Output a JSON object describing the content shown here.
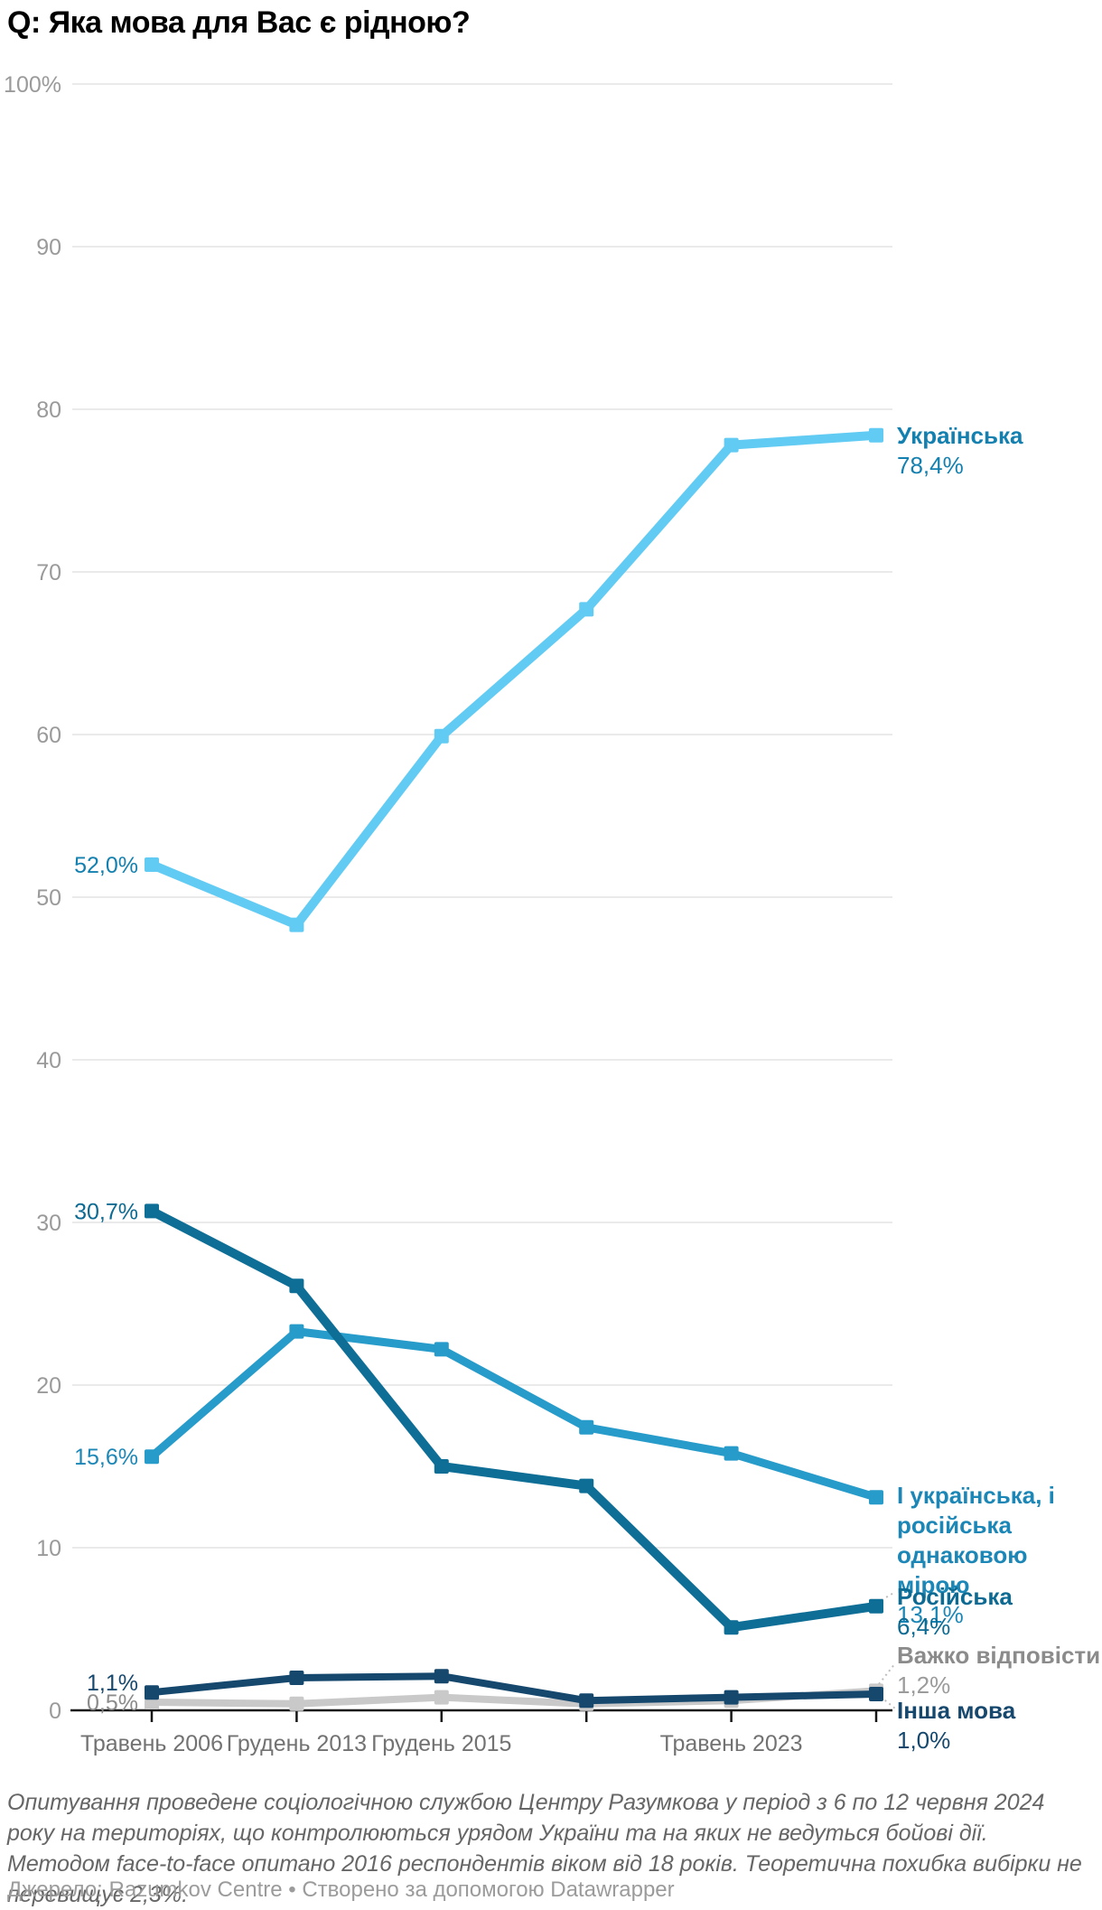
{
  "header": {
    "title": "Q: Яка мова для Вас є рідною?"
  },
  "chart_data": {
    "type": "line",
    "title": "Q: Яка мова для Вас є рідною?",
    "x_tick_labels": [
      "Травень 2006",
      "Грудень 2013",
      "Грудень 2015",
      "",
      "Травень 2023",
      ""
    ],
    "y_ticks": [
      0,
      10,
      20,
      30,
      40,
      50,
      60,
      70,
      80,
      90,
      100
    ],
    "y_axis_top_label": "100%",
    "ylim": [
      0,
      100
    ],
    "grid": true,
    "legend_position": "right-of-line-ends",
    "series": [
      {
        "name": "Українська",
        "values": [
          52.0,
          48.3,
          59.9,
          67.7,
          77.8,
          78.4
        ],
        "start_label": "52,0%",
        "end_value_label": "78,4%",
        "line_color": "#62CBF3",
        "label_color": "#1480AF",
        "value_color": "#1480AF"
      },
      {
        "name": "І українська, і російська однаковою мірою",
        "values": [
          15.6,
          23.3,
          22.2,
          17.4,
          15.8,
          13.1
        ],
        "start_label": "15,6%",
        "end_value_label": "13,1%",
        "line_color": "#279BC9",
        "label_color": "#1C87B6",
        "value_color": "#1C87B6"
      },
      {
        "name": "Російська",
        "values": [
          30.7,
          26.1,
          15.0,
          13.8,
          5.1,
          6.4
        ],
        "start_label": "30,7%",
        "end_value_label": "6,4%",
        "line_color": "#0E6E96",
        "label_color": "#0D6A92",
        "value_color": "#0D6A92"
      },
      {
        "name": "Важко відповісти",
        "values": [
          0.5,
          0.4,
          0.8,
          0.4,
          0.6,
          1.2
        ],
        "start_label": "0,5%",
        "end_value_label": "1,2%",
        "line_color": "#C9C9C9",
        "label_color": "#8B8B8B",
        "value_color": "#9B9B9B"
      },
      {
        "name": "Інша мова",
        "values": [
          1.1,
          2.0,
          2.1,
          0.6,
          0.8,
          1.0
        ],
        "start_label": "1,1%",
        "end_value_label": "1,0%",
        "line_color": "#16486E",
        "label_color": "#16486E",
        "value_color": "#16486E"
      }
    ]
  },
  "footer": {
    "notes": "Опитування проведене соціологічною службою Центру Разумкова у період з 6 по 12 червня 2024 року на територіях, що контролюються урядом України та на яких не ведуться бойові дії. Методом face-to-face опитано 2016 респондентів віком від 18 років. Теоретична похибка вибірки не перевищує 2,3%.",
    "source": "Джерело: Razumkov Centre • Створено за допомогою Datawrapper"
  }
}
